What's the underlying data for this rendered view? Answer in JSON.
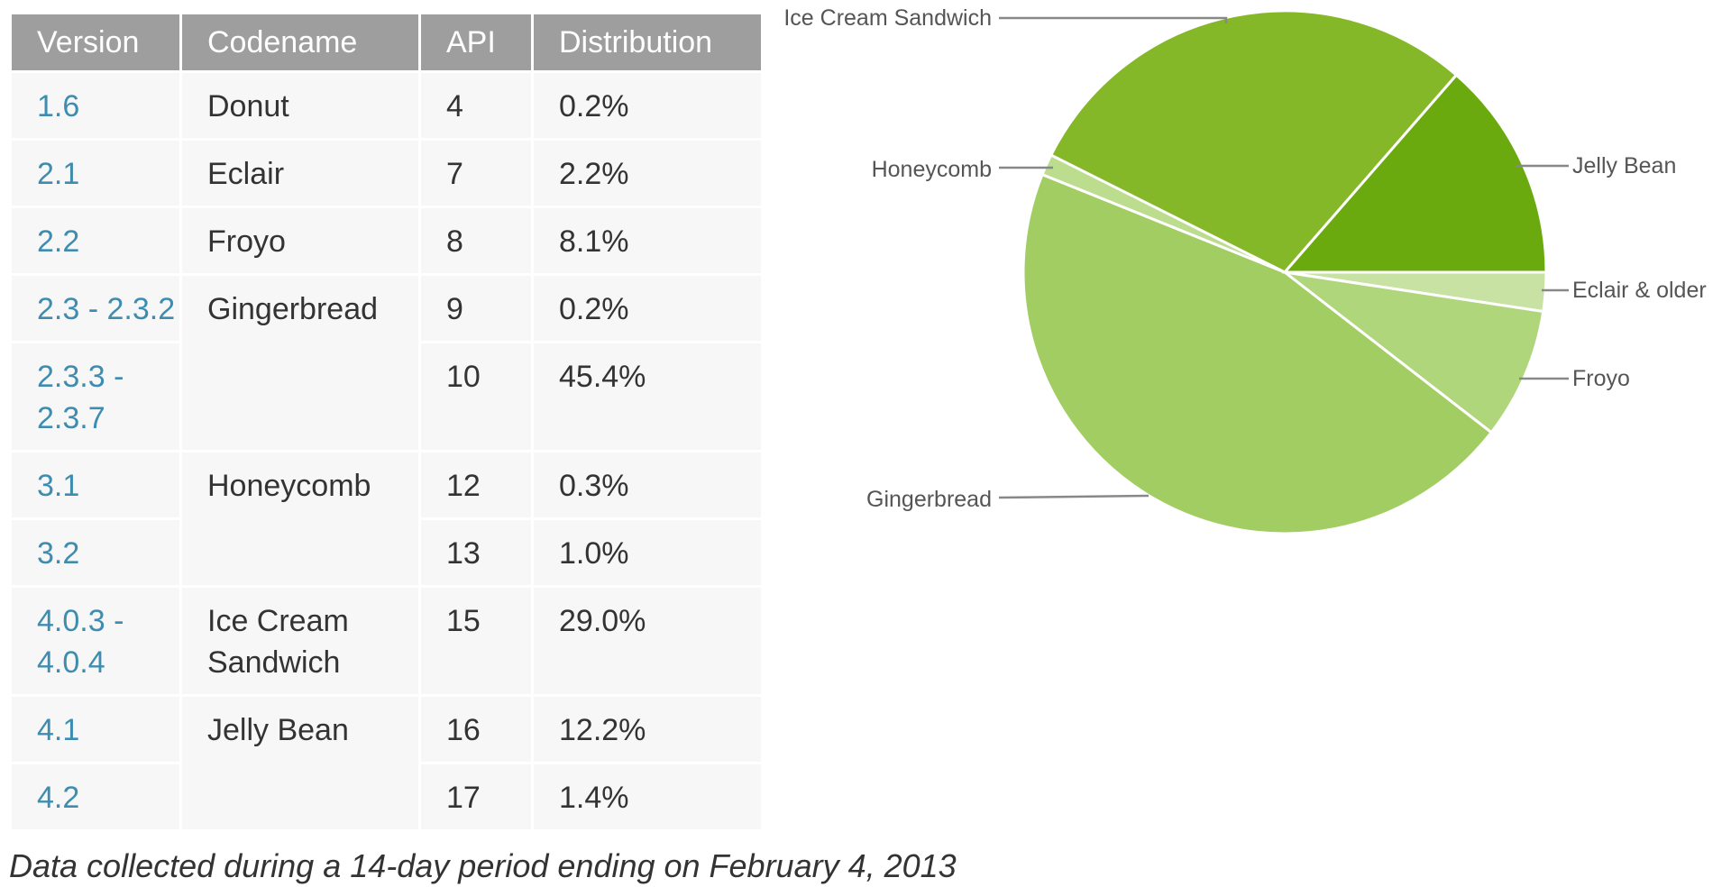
{
  "table": {
    "headers": [
      "Version",
      "Codename",
      "API",
      "Distribution"
    ],
    "rows": [
      {
        "version": "1.6",
        "codename": "Donut",
        "api": "4",
        "dist": "0.2%"
      },
      {
        "version": "2.1",
        "codename": "Eclair",
        "api": "7",
        "dist": "2.2%"
      },
      {
        "version": "2.2",
        "codename": "Froyo",
        "api": "8",
        "dist": "8.1%"
      },
      {
        "version": "2.3 - 2.3.2",
        "codename": "Gingerbread",
        "api": "9",
        "dist": "0.2%"
      },
      {
        "version": "2.3.3 - 2.3.7",
        "codename": "",
        "api": "10",
        "dist": "45.4%"
      },
      {
        "version": "3.1",
        "codename": "Honeycomb",
        "api": "12",
        "dist": "0.3%"
      },
      {
        "version": "3.2",
        "codename": "",
        "api": "13",
        "dist": "1.0%"
      },
      {
        "version": "4.0.3 - 4.0.4",
        "codename": "Ice Cream Sandwich",
        "api": "15",
        "dist": "29.0%"
      },
      {
        "version": "4.1",
        "codename": "Jelly Bean",
        "api": "16",
        "dist": "12.2%"
      },
      {
        "version": "4.2",
        "codename": "",
        "api": "17",
        "dist": "1.4%"
      }
    ]
  },
  "footnote": "Data collected during a 14-day period ending on February 4, 2013",
  "chart_data": {
    "type": "pie",
    "slices": [
      {
        "label": "Eclair & older",
        "value": 2.4,
        "color": "#c8e2a4"
      },
      {
        "label": "Froyo",
        "value": 8.1,
        "color": "#b0d67c"
      },
      {
        "label": "Gingerbread",
        "value": 45.6,
        "color": "#a2cd62"
      },
      {
        "label": "Honeycomb",
        "value": 1.3,
        "color": "#bcdc8e"
      },
      {
        "label": "Ice Cream Sandwich",
        "value": 29.0,
        "color": "#85b828"
      },
      {
        "label": "Jelly Bean",
        "value": 13.6,
        "color": "#6aaa0e"
      }
    ],
    "start_angle_deg": 0,
    "direction": "clockwise"
  }
}
